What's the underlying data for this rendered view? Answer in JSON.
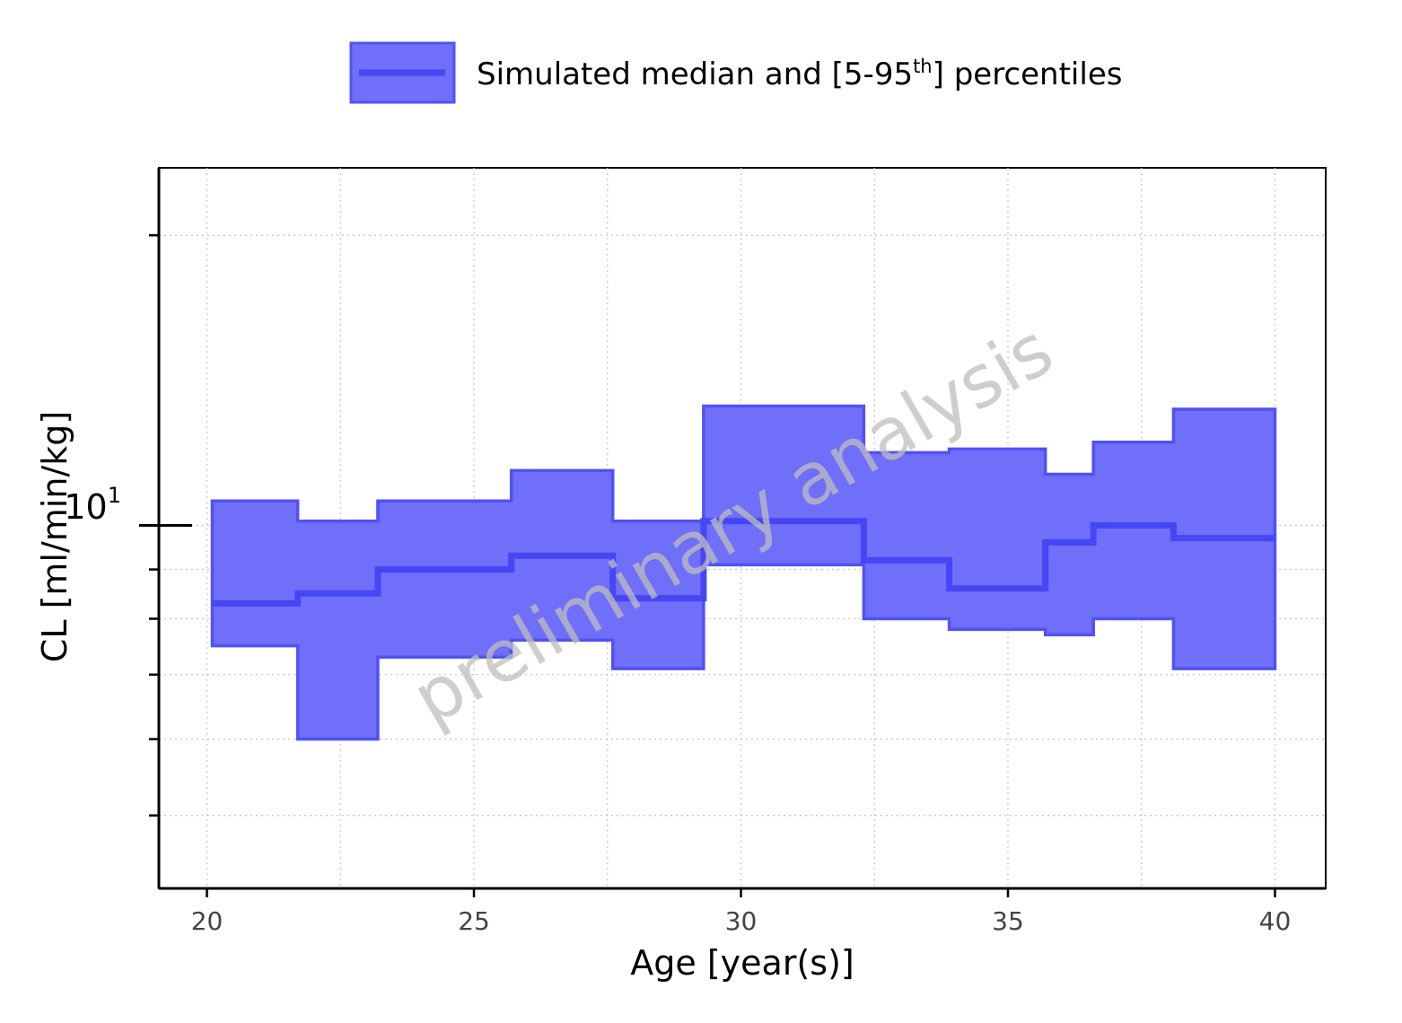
{
  "legend": {
    "label_main": "Simulated median and [5-95",
    "label_sup": "th",
    "label_end": "] percentiles"
  },
  "watermark": "preliminary analysis",
  "colors": {
    "band_fill": "#6f6ff9",
    "band_stroke": "#5151f6",
    "median_line": "#4646f4",
    "grid": "#c8c8c8"
  },
  "chart_data": {
    "type": "area",
    "xlabel": "Age [year(s)]",
    "ylabel": "CL [ml/min/kg]",
    "xlim": [
      19.1,
      40.95
    ],
    "ylim": [
      4.2,
      23.5
    ],
    "yscale": "log",
    "grid": true,
    "legend_position": "top-center",
    "x_ticks": [
      20,
      25,
      30,
      35,
      40
    ],
    "x_tick_labels": [
      "20",
      "25",
      "30",
      "35",
      "40"
    ],
    "y_major_tick": {
      "base": "10",
      "exponent": "1",
      "value": 10
    },
    "y_minor_ticks": [
      5,
      6,
      7,
      8,
      9,
      20
    ],
    "bins": [
      {
        "x0": 20.1,
        "x1": 21.7,
        "p5": 7.5,
        "median": 8.3,
        "p95": 10.6
      },
      {
        "x0": 21.7,
        "x1": 23.2,
        "p5": 6.0,
        "median": 8.5,
        "p95": 10.1
      },
      {
        "x0": 23.2,
        "x1": 25.7,
        "p5": 7.3,
        "median": 9.0,
        "p95": 10.6
      },
      {
        "x0": 25.7,
        "x1": 27.6,
        "p5": 7.6,
        "median": 9.3,
        "p95": 11.4
      },
      {
        "x0": 27.6,
        "x1": 29.3,
        "p5": 7.1,
        "median": 8.4,
        "p95": 10.1
      },
      {
        "x0": 29.3,
        "x1": 32.3,
        "p5": 9.1,
        "median": 10.1,
        "p95": 13.3
      },
      {
        "x0": 32.3,
        "x1": 33.9,
        "p5": 8.0,
        "median": 9.2,
        "p95": 11.9
      },
      {
        "x0": 33.9,
        "x1": 35.7,
        "p5": 7.8,
        "median": 8.6,
        "p95": 12.0
      },
      {
        "x0": 35.7,
        "x1": 36.6,
        "p5": 7.7,
        "median": 9.6,
        "p95": 11.3
      },
      {
        "x0": 36.6,
        "x1": 38.1,
        "p5": 8.0,
        "median": 10.0,
        "p95": 12.2
      },
      {
        "x0": 38.1,
        "x1": 40.0,
        "p5": 7.1,
        "median": 9.7,
        "p95": 13.2
      }
    ]
  }
}
